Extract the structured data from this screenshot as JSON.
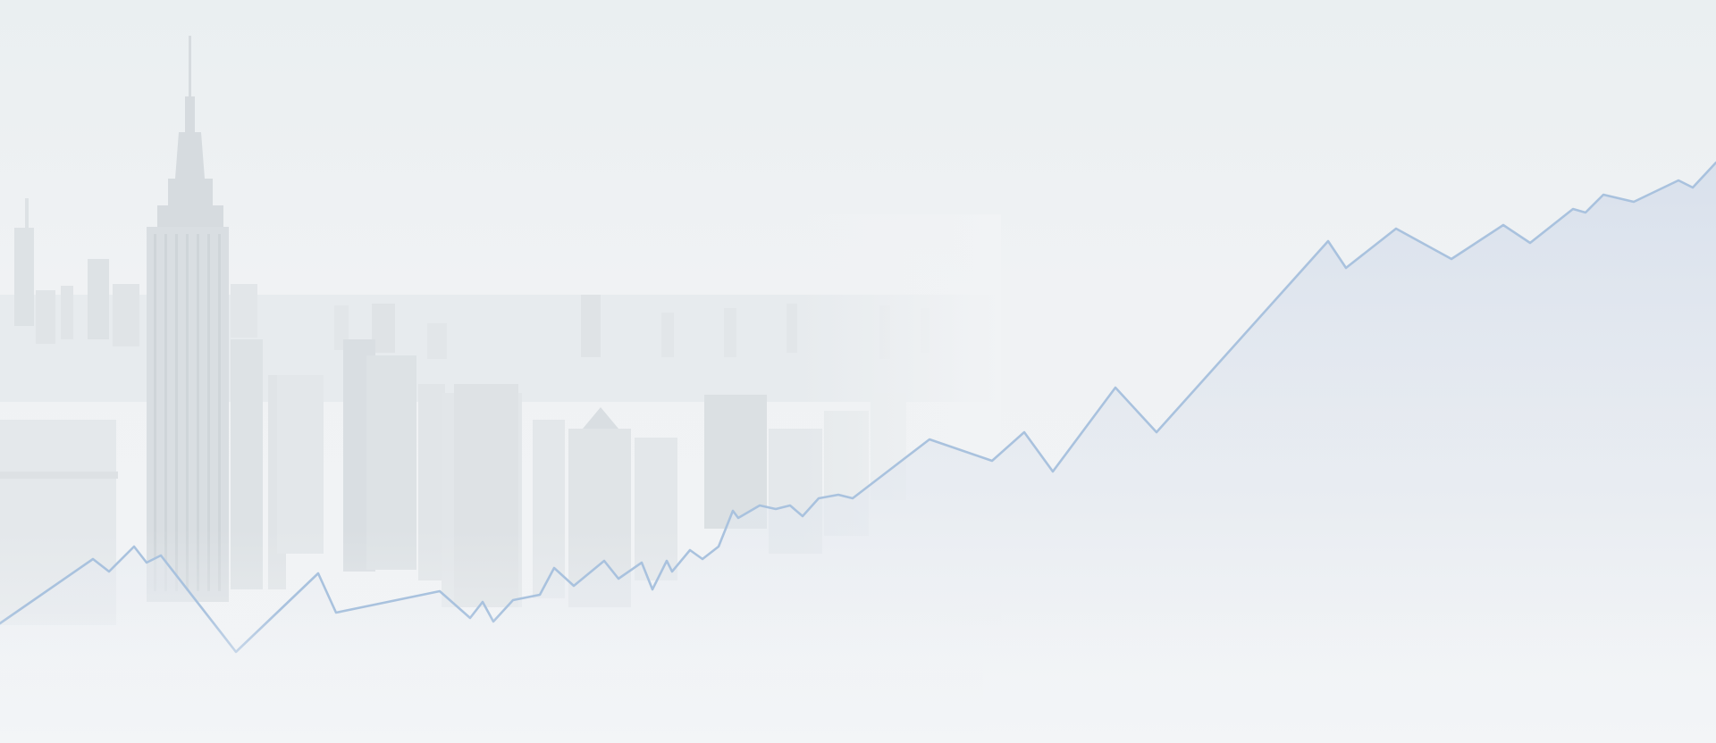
{
  "colors": {
    "background": "#f1f3f5",
    "building_light": "#e6eaed",
    "building_mid": "#dde2e6",
    "building_dark": "#d3d8dc",
    "haze": "#eef1f3",
    "trend_line": "#a9c2de",
    "trend_fill": "#dde4ee"
  }
}
